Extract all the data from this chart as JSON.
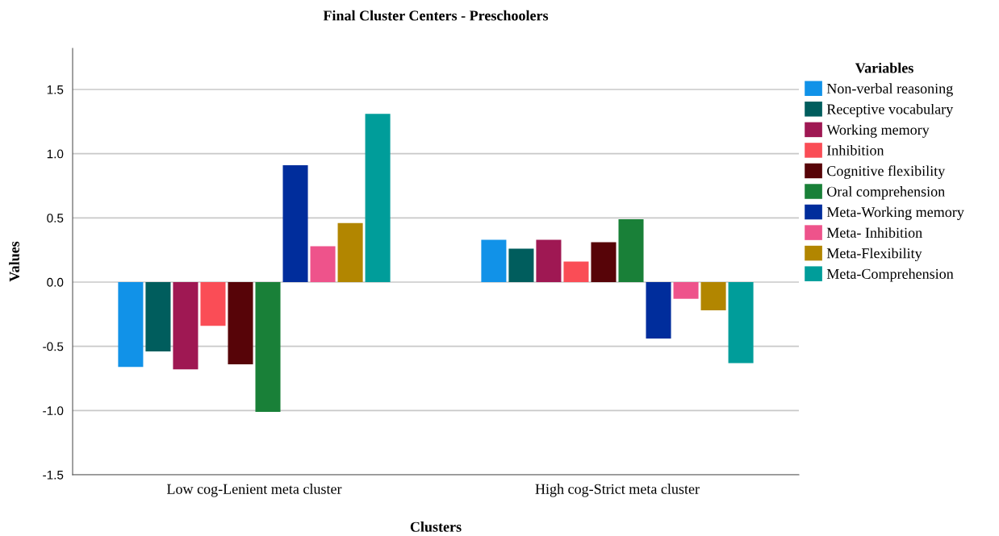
{
  "chart_data": {
    "type": "bar",
    "title": "Final Cluster Centers - Preschoolers",
    "xlabel": "Clusters",
    "ylabel": "Values",
    "legend_title": "Variables",
    "categories": [
      "Low cog-Lenient meta cluster",
      "High cog-Strict meta cluster"
    ],
    "series": [
      {
        "name": "Non-verbal reasoning",
        "color": "#1192e8",
        "values": [
          -0.66,
          0.33
        ]
      },
      {
        "name": "Receptive vocabulary",
        "color": "#005d5d",
        "values": [
          -0.54,
          0.26
        ]
      },
      {
        "name": "Working memory",
        "color": "#9f1853",
        "values": [
          -0.68,
          0.33
        ]
      },
      {
        "name": "Inhibition",
        "color": "#fa4d56",
        "values": [
          -0.34,
          0.16
        ]
      },
      {
        "name": "Cognitive flexibility",
        "color": "#570408",
        "values": [
          -0.64,
          0.31
        ]
      },
      {
        "name": "Oral comprehension",
        "color": "#198038",
        "values": [
          -1.01,
          0.49
        ]
      },
      {
        "name": "Meta-Working memory",
        "color": "#002d9c",
        "values": [
          0.91,
          -0.44
        ]
      },
      {
        "name": "Meta- Inhibition",
        "color": "#ee538b",
        "values": [
          0.28,
          -0.13
        ]
      },
      {
        "name": "Meta-Flexibility",
        "color": "#b28600",
        "values": [
          0.46,
          -0.22
        ]
      },
      {
        "name": "Meta-Comprehension",
        "color": "#009d9a",
        "values": [
          1.31,
          -0.63
        ]
      }
    ],
    "ylim": [
      -1.5,
      1.82
    ],
    "yticks": [
      {
        "value": -1.5,
        "label": "-1.5"
      },
      {
        "value": -1.0,
        "label": "-1.0"
      },
      {
        "value": -0.5,
        "label": "-0.5"
      },
      {
        "value": 0.0,
        "label": "0.0"
      },
      {
        "value": 0.5,
        "label": "0.5"
      },
      {
        "value": 1.0,
        "label": "1.0"
      },
      {
        "value": 1.5,
        "label": "1.5"
      }
    ],
    "grid": "y",
    "legend": "top right"
  }
}
